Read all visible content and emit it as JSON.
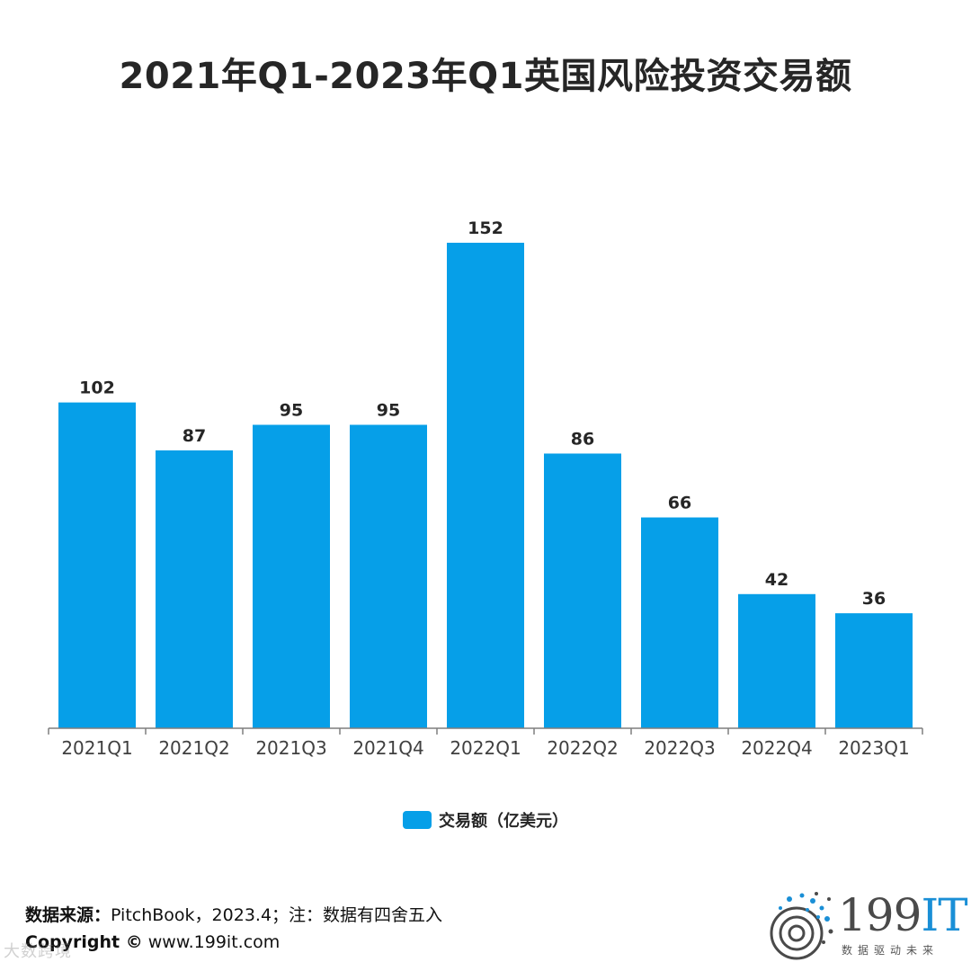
{
  "title": "2021年Q1-2023年Q1英国风险投资交易额",
  "chart_data": {
    "type": "bar",
    "categories": [
      "2021Q1",
      "2021Q2",
      "2021Q3",
      "2021Q4",
      "2022Q1",
      "2022Q2",
      "2022Q3",
      "2022Q4",
      "2023Q1"
    ],
    "series": [
      {
        "name": "交易额（亿美元）",
        "values": [
          102,
          87,
          95,
          95,
          152,
          86,
          66,
          42,
          36
        ],
        "color": "#069fe8"
      }
    ],
    "ylim": [
      0,
      152
    ],
    "grid": false,
    "data_labels": true,
    "legend_position": "bottom"
  },
  "legend": {
    "label": "交易额（亿美元）",
    "color": "#069fe8"
  },
  "footer": {
    "source_label": "数据来源：",
    "source_text": "PitchBook，2023.4；注：数据有四舍五入",
    "copyright_label": "Copyright ©",
    "copyright_text": " www.199it.com"
  },
  "watermark": "大数跨境",
  "logo": {
    "main": "199",
    "accent": "IT",
    "sub": "数据驱动未来"
  }
}
